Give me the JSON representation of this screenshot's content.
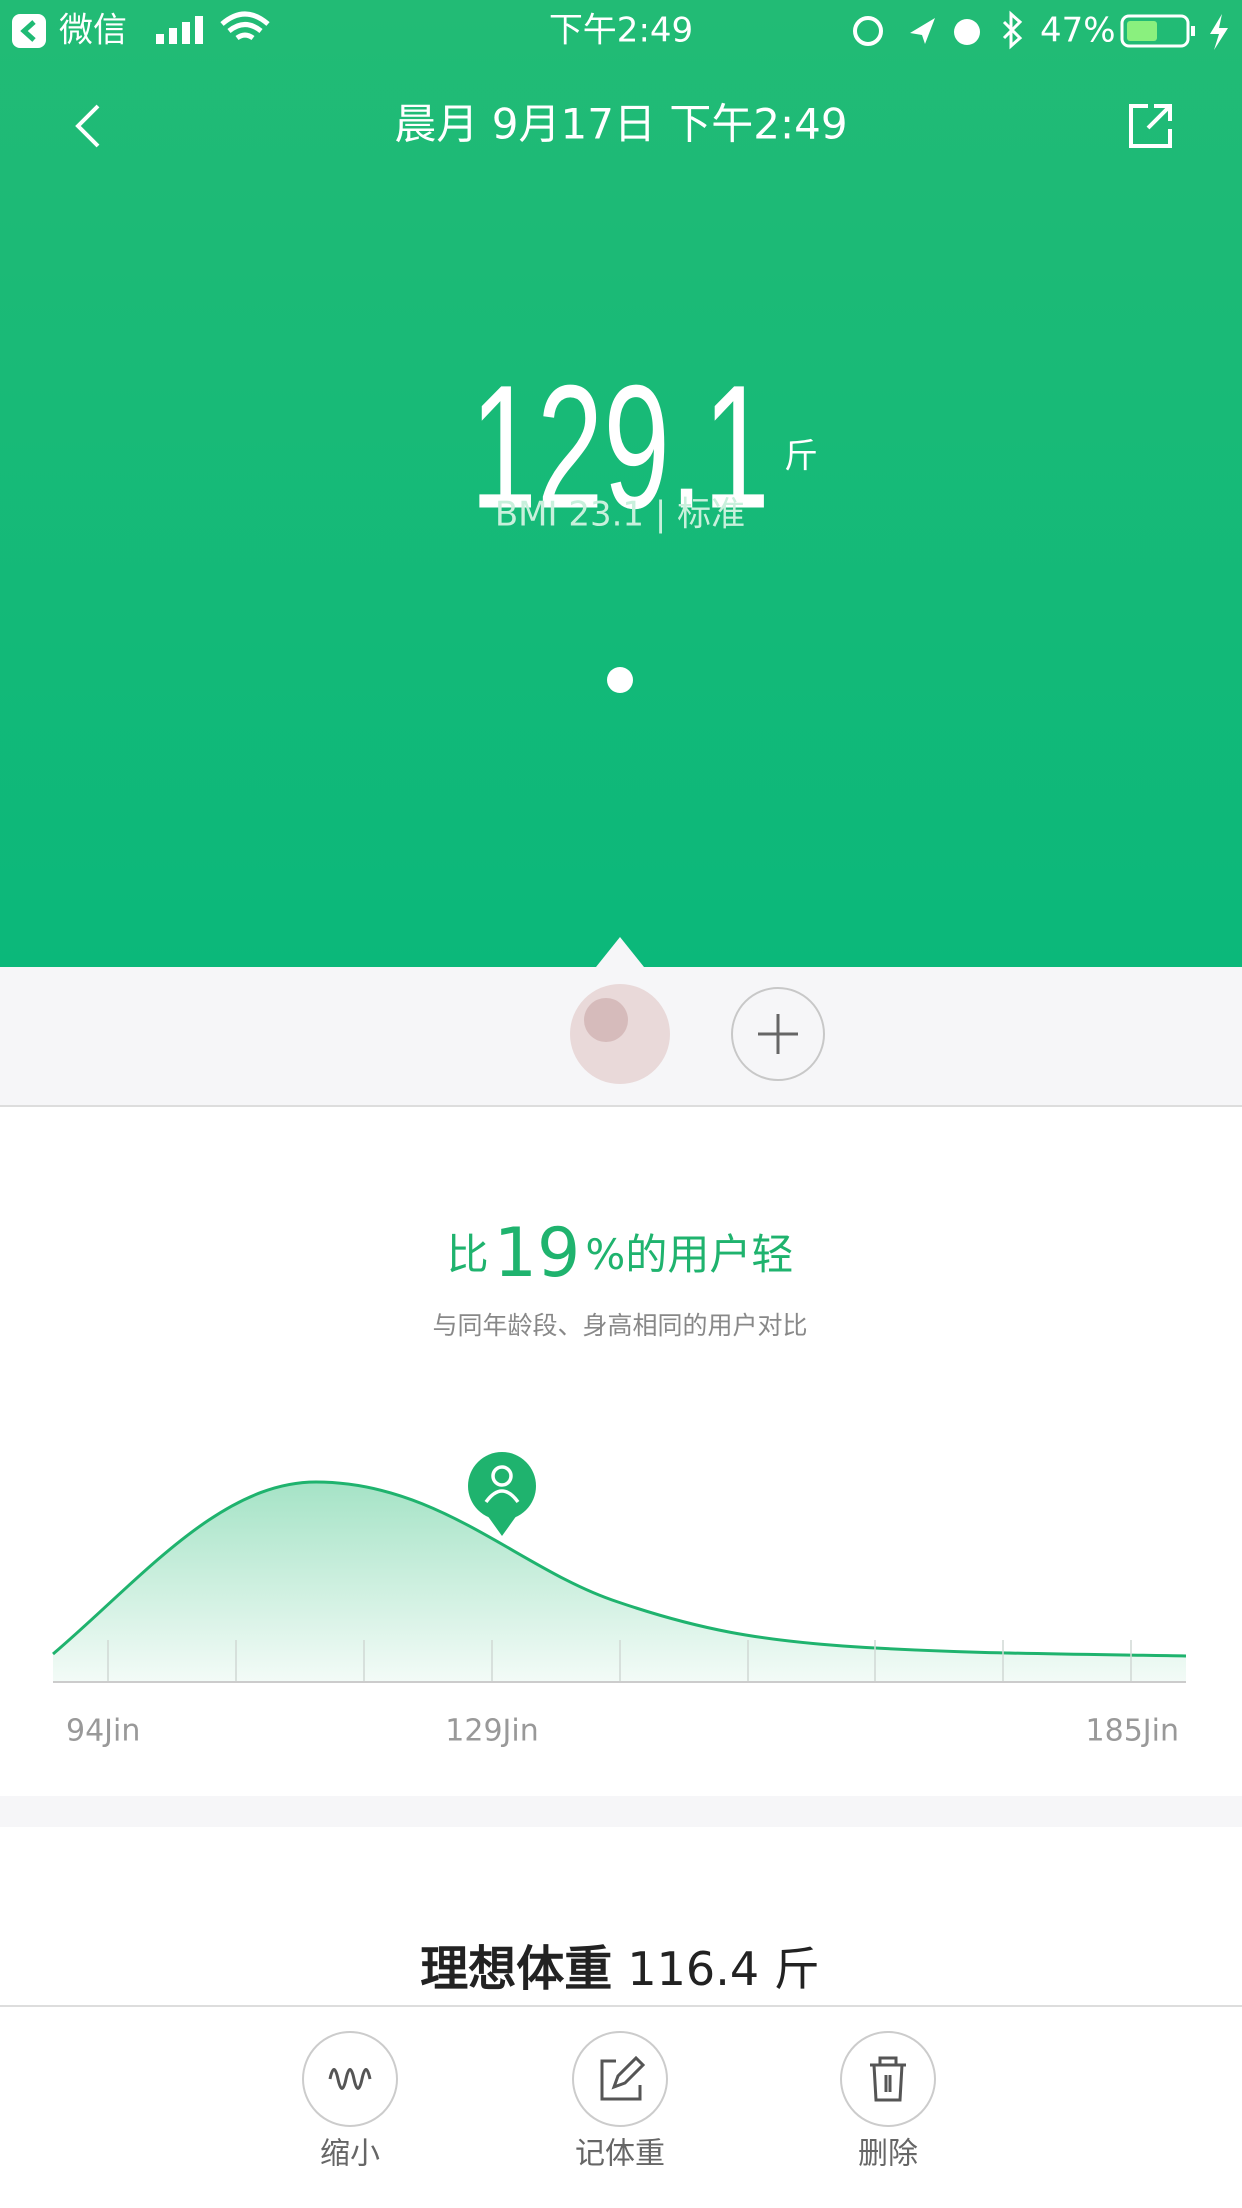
{
  "status_bar": {
    "carrier": "微信",
    "time": "下午2:49",
    "battery": "47%"
  },
  "header": {
    "title": "晨月 9月17日 下午2:49"
  },
  "summary": {
    "weight": "129.1",
    "unit": "斤",
    "bmi": "BMI 23.1 | 标准"
  },
  "comparison": {
    "prefix": "比",
    "percent": "19",
    "suffix": "%的用户轻",
    "subtitle": "与同年龄段、身高相同的用户对比"
  },
  "distribution": {
    "labels": [
      "94Jin",
      "129Jin",
      "185Jin"
    ]
  },
  "ideal": {
    "label": "理想体重",
    "value": "116.4 斤"
  },
  "toolbar": {
    "buttons": [
      {
        "label": "缩小"
      },
      {
        "label": "记体重"
      },
      {
        "label": "删除"
      }
    ]
  }
}
